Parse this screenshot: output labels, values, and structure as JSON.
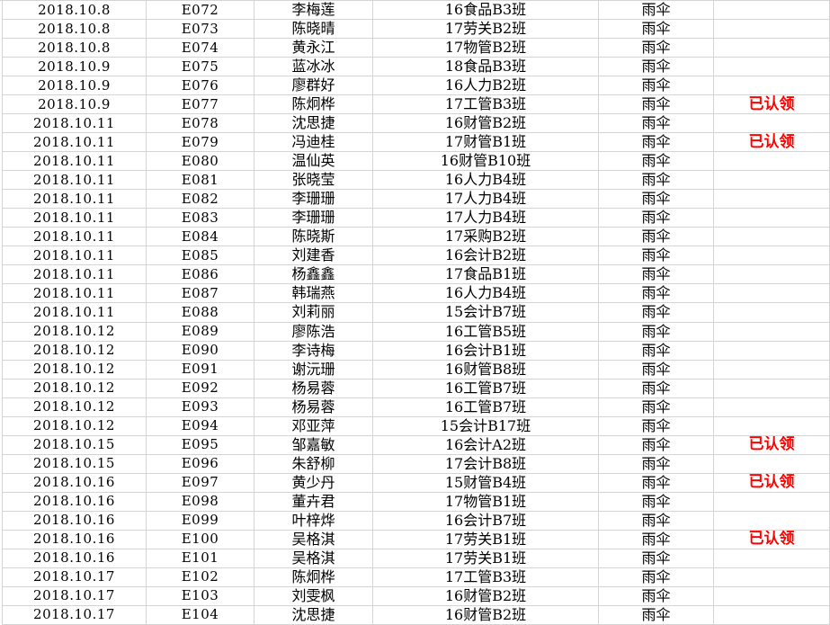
{
  "table": {
    "item_label": "雨伞",
    "claimed_label": "已认领",
    "colors": {
      "claimed_text": "#ff0000",
      "gridline": "#d4d4d4",
      "body_text": "#000000",
      "background": "#ffffff"
    },
    "columns": [
      "date",
      "code",
      "name",
      "class",
      "item",
      "status"
    ],
    "rows": [
      {
        "date": "2018.10.8",
        "code": "E072",
        "name": "李梅莲",
        "class": "16食品B3班",
        "item": "雨伞",
        "status": ""
      },
      {
        "date": "2018.10.8",
        "code": "E073",
        "name": "陈晓晴",
        "class": "17劳关B2班",
        "item": "雨伞",
        "status": ""
      },
      {
        "date": "2018.10.8",
        "code": "E074",
        "name": "黄永江",
        "class": "17物管B2班",
        "item": "雨伞",
        "status": ""
      },
      {
        "date": "2018.10.9",
        "code": "E075",
        "name": "蓝冰冰",
        "class": "18食品B3班",
        "item": "雨伞",
        "status": ""
      },
      {
        "date": "2018.10.9",
        "code": "E076",
        "name": "廖群好",
        "class": "16人力B2班",
        "item": "雨伞",
        "status": ""
      },
      {
        "date": "2018.10.9",
        "code": "E077",
        "name": "陈炯桦",
        "class": "17工管B3班",
        "item": "雨伞",
        "status": "已认领"
      },
      {
        "date": "2018.10.11",
        "code": "E078",
        "name": "沈思捷",
        "class": "16财管B2班",
        "item": "雨伞",
        "status": ""
      },
      {
        "date": "2018.10.11",
        "code": "E079",
        "name": "冯迪桂",
        "class": "17财管B1班",
        "item": "雨伞",
        "status": "已认领"
      },
      {
        "date": "2018.10.11",
        "code": "E080",
        "name": "温仙英",
        "class": "16财管B10班",
        "item": "雨伞",
        "status": ""
      },
      {
        "date": "2018.10.11",
        "code": "E081",
        "name": "张晓莹",
        "class": "16人力B4班",
        "item": "雨伞",
        "status": ""
      },
      {
        "date": "2018.10.11",
        "code": "E082",
        "name": "李珊珊",
        "class": "17人力B4班",
        "item": "雨伞",
        "status": ""
      },
      {
        "date": "2018.10.11",
        "code": "E083",
        "name": "李珊珊",
        "class": "17人力B4班",
        "item": "雨伞",
        "status": ""
      },
      {
        "date": "2018.10.11",
        "code": "E084",
        "name": "陈晓斯",
        "class": "17采购B2班",
        "item": "雨伞",
        "status": ""
      },
      {
        "date": "2018.10.11",
        "code": "E085",
        "name": "刘建香",
        "class": "16会计B2班",
        "item": "雨伞",
        "status": ""
      },
      {
        "date": "2018.10.11",
        "code": "E086",
        "name": "杨鑫鑫",
        "class": "17食品B1班",
        "item": "雨伞",
        "status": ""
      },
      {
        "date": "2018.10.11",
        "code": "E087",
        "name": "韩瑞燕",
        "class": "16人力B4班",
        "item": "雨伞",
        "status": ""
      },
      {
        "date": "2018.10.11",
        "code": "E088",
        "name": "刘莉丽",
        "class": "15会计B7班",
        "item": "雨伞",
        "status": ""
      },
      {
        "date": "2018.10.12",
        "code": "E089",
        "name": "廖陈浩",
        "class": "16工管B5班",
        "item": "雨伞",
        "status": ""
      },
      {
        "date": "2018.10.12",
        "code": "E090",
        "name": "李诗梅",
        "class": "16会计B1班",
        "item": "雨伞",
        "status": ""
      },
      {
        "date": "2018.10.12",
        "code": "E091",
        "name": "谢沅珊",
        "class": "16财管B8班",
        "item": "雨伞",
        "status": ""
      },
      {
        "date": "2018.10.12",
        "code": "E092",
        "name": "杨易蓉",
        "class": "16工管B7班",
        "item": "雨伞",
        "status": ""
      },
      {
        "date": "2018.10.12",
        "code": "E093",
        "name": "杨易蓉",
        "class": "16工管B7班",
        "item": "雨伞",
        "status": ""
      },
      {
        "date": "2018.10.12",
        "code": "E094",
        "name": "邓亚萍",
        "class": "15会计B17班",
        "item": "雨伞",
        "status": ""
      },
      {
        "date": "2018.10.15",
        "code": "E095",
        "name": "邹嘉敏",
        "class": "16会计A2班",
        "item": "雨伞",
        "status": "已认领"
      },
      {
        "date": "2018.10.15",
        "code": "E096",
        "name": "朱舒柳",
        "class": "17会计B8班",
        "item": "雨伞",
        "status": ""
      },
      {
        "date": "2018.10.16",
        "code": "E097",
        "name": "黄少丹",
        "class": "15财管B4班",
        "item": "雨伞",
        "status": "已认领"
      },
      {
        "date": "2018.10.16",
        "code": "E098",
        "name": "董卉君",
        "class": "17物管B1班",
        "item": "雨伞",
        "status": ""
      },
      {
        "date": "2018.10.16",
        "code": "E099",
        "name": "叶梓烨",
        "class": "16会计B7班",
        "item": "雨伞",
        "status": ""
      },
      {
        "date": "2018.10.16",
        "code": "E100",
        "name": "吴格淇",
        "class": "17劳关B1班",
        "item": "雨伞",
        "status": "已认领"
      },
      {
        "date": "2018.10.16",
        "code": "E101",
        "name": "吴格淇",
        "class": "17劳关B1班",
        "item": "雨伞",
        "status": ""
      },
      {
        "date": "2018.10.17",
        "code": "E102",
        "name": "陈炯桦",
        "class": "17工管B3班",
        "item": "雨伞",
        "status": ""
      },
      {
        "date": "2018.10.17",
        "code": "E103",
        "name": "刘雯枫",
        "class": "16财管B2班",
        "item": "雨伞",
        "status": ""
      },
      {
        "date": "2018.10.17",
        "code": "E104",
        "name": "沈思捷",
        "class": "16财管B2班",
        "item": "雨伞",
        "status": ""
      }
    ]
  }
}
